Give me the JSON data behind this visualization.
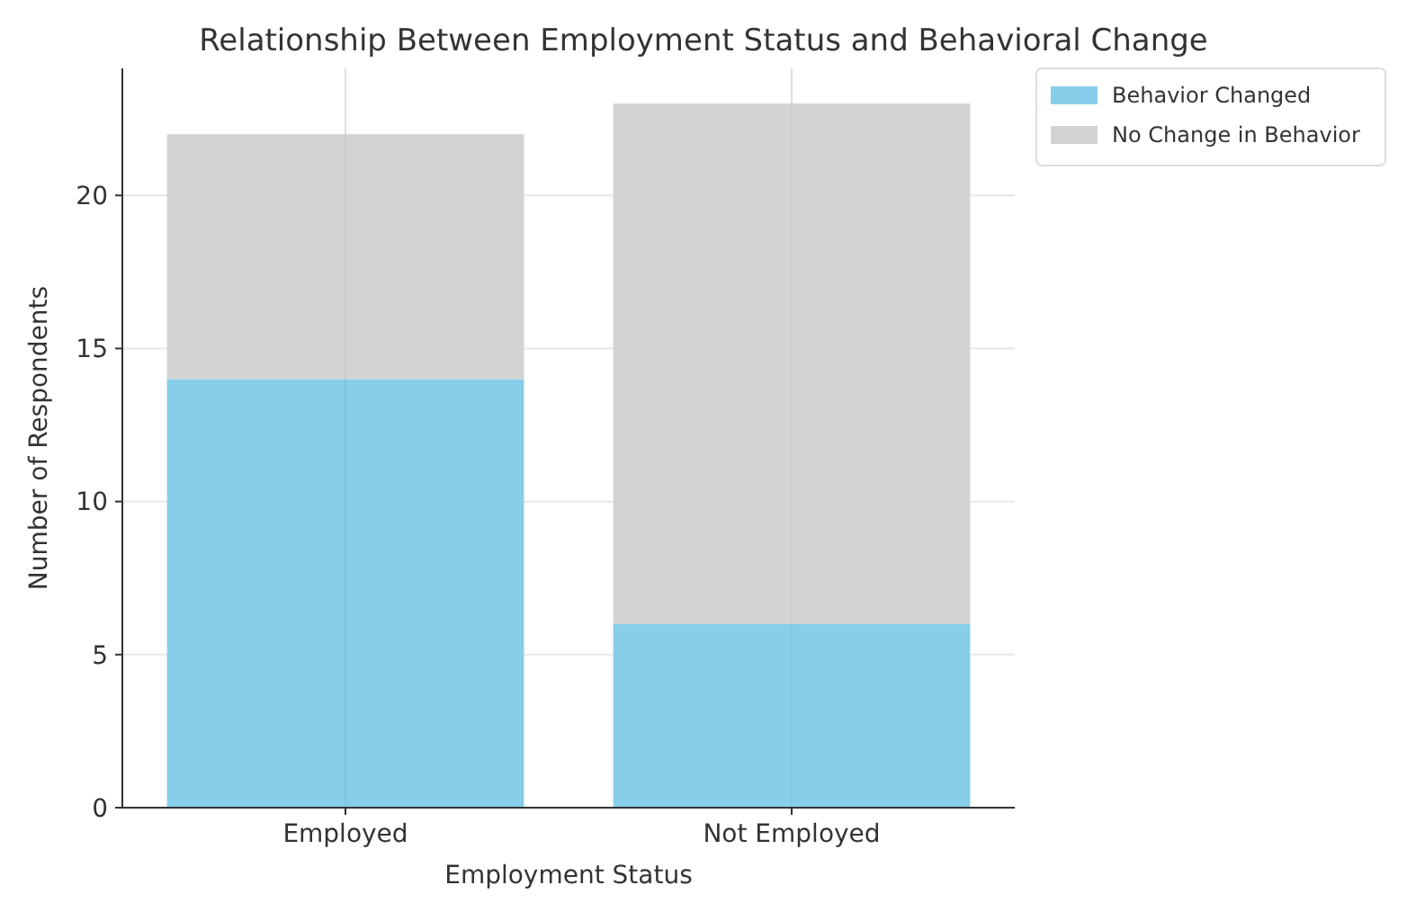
{
  "chart_data": {
    "type": "bar",
    "title": "Relationship Between Employment Status and Behavioral Change",
    "xlabel": "Employment Status",
    "ylabel": "Number of Respondents",
    "categories": [
      "Employed",
      "Not Employed"
    ],
    "stacked": true,
    "series": [
      {
        "name": "Behavior Changed",
        "color": "#87ceeb",
        "values": [
          14,
          6
        ]
      },
      {
        "name": "No Change in Behavior",
        "color": "#d3d3d3",
        "values": [
          8,
          17
        ]
      }
    ],
    "ylim": [
      0,
      24.15
    ],
    "yticks": [
      0,
      5,
      10,
      15,
      20
    ],
    "grid": true,
    "legend": "top right"
  }
}
